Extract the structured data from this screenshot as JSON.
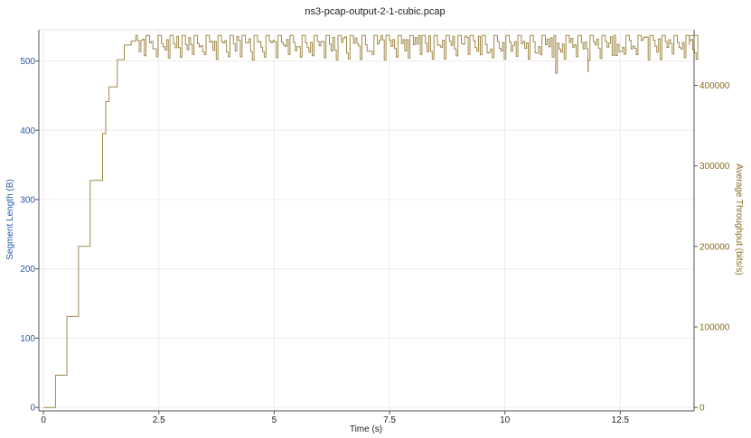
{
  "chart_data": {
    "type": "line",
    "title": "ns3-pcap-output-2-1-cubic.pcap",
    "xlabel": "Time (s)",
    "ylabel_left": "Segment Length (B)",
    "ylabel_right": "Average Throughput (bits/s)",
    "xlim": [
      -0.1,
      14.1
    ],
    "ylim_left": [
      -5,
      545
    ],
    "ylim_right": [
      -4300,
      469000
    ],
    "x_ticks": [
      "0",
      "2.5",
      "5",
      "7.5",
      "10",
      "12.5"
    ],
    "y_left_ticks": [
      "0",
      "100",
      "200",
      "300",
      "400",
      "500"
    ],
    "y_right_ticks": [
      "0",
      "100000",
      "200000",
      "300000",
      "400000"
    ],
    "grid": true,
    "colors": {
      "left_axis": "#2a5aa6",
      "right_axis": "#8a6a1e",
      "series": "#a08a4a",
      "grid": "#ececec"
    },
    "series": [
      {
        "axis": "right",
        "x": [
          0,
          0.25,
          0.26,
          0.5,
          0.51,
          0.75,
          0.76,
          1.0,
          1.01,
          1.25,
          1.28,
          1.35,
          1.42,
          1.5,
          1.6,
          1.75,
          1.9,
          2.0
        ],
        "y": [
          0,
          0,
          40000,
          40000,
          113000,
          113000,
          200000,
          200000,
          282000,
          282000,
          340000,
          380000,
          398000,
          398000,
          432000,
          450000,
          455000,
          458000
        ],
        "plateau": {
          "x_range": [
            2.0,
            14.0
          ],
          "high": 462000,
          "dip_low": 431000,
          "dip_period": 0.26,
          "notable_lows": [
            {
              "x": 11.1,
              "y": 415000
            },
            {
              "x": 11.8,
              "y": 417000
            },
            {
              "x": 12.4,
              "y": 437000
            }
          ]
        }
      }
    ]
  }
}
